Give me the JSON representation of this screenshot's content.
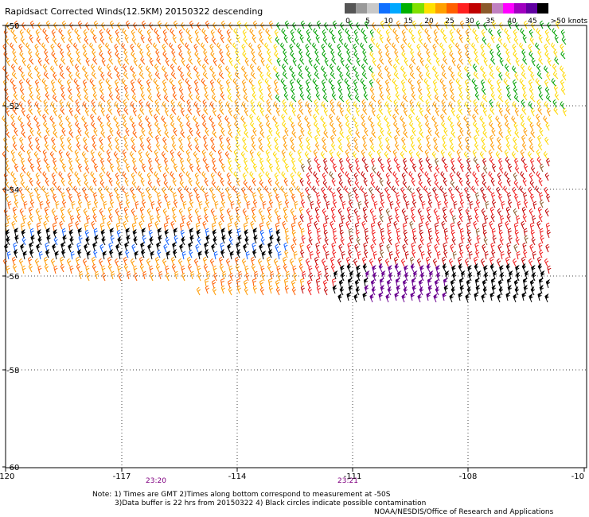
{
  "title": "Rapidsact Corrected Winds(12.5KM) 20150322 descending",
  "legend": {
    "colors": [
      "#555555",
      "#999999",
      "#c8c8c8",
      "#1070ff",
      "#00a8ff",
      "#00b000",
      "#80e000",
      "#ffe000",
      "#ffa000",
      "#ff6000",
      "#ff2020",
      "#c00000",
      "#8b5a2b",
      "#c080c0",
      "#ff00ff",
      "#a000c0",
      "#6000a0",
      "#000000"
    ],
    "labels": [
      "0",
      "5",
      "10",
      "15",
      "20",
      "25",
      "30",
      "35",
      "40",
      "45",
      ">50 knots"
    ],
    "unit": "knots"
  },
  "map": {
    "lon_ticks": [
      "-120",
      "-117",
      "-114",
      "-111",
      "-108",
      "-10"
    ],
    "lat_ticks": [
      "-50",
      "-52",
      "-54",
      "-56",
      "-58",
      "-60"
    ],
    "times": [
      "23:20",
      "23:21"
    ]
  },
  "notes": {
    "line1": "Note: 1) Times are GMT 2)Times along bottom correspond to measurement at -50S",
    "line2": "3)Data buffer is 22 hrs from 20150322 4) Black circles indicate possible contamination",
    "line3": "NOAA/NESDIS/Office of Research and Applications"
  }
}
